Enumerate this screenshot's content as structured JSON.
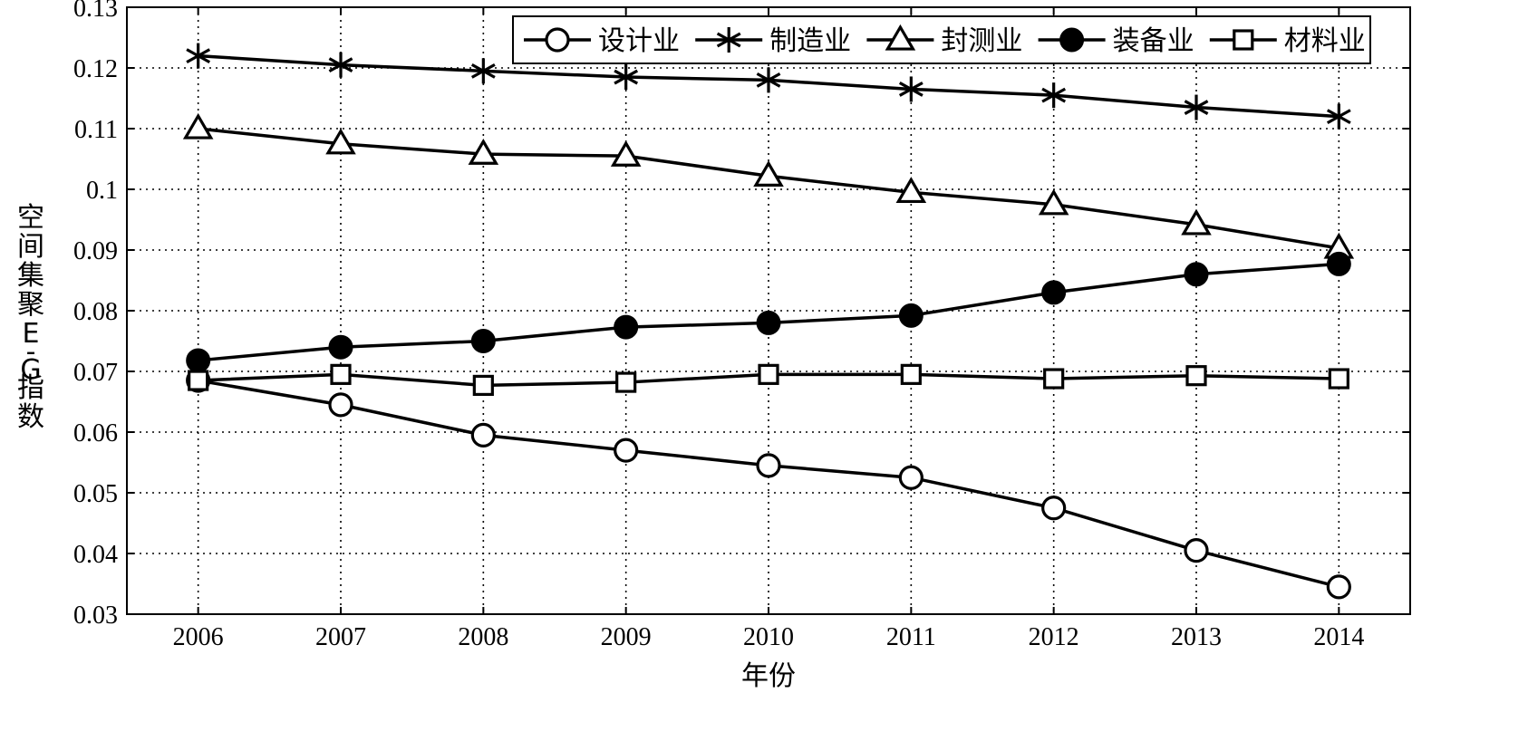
{
  "chart_data": {
    "type": "line",
    "title": "",
    "xlabel": "年份",
    "ylabel": "空间集聚E-G指数",
    "x": [
      2006,
      2007,
      2008,
      2009,
      2010,
      2011,
      2012,
      2013,
      2014
    ],
    "x_tick_labels": [
      "2006",
      "2007",
      "2008",
      "2009",
      "2010",
      "2011",
      "2012",
      "2013",
      "2014"
    ],
    "xlim": [
      2005.5,
      2014.5
    ],
    "ylim": [
      0.03,
      0.13
    ],
    "y_ticks": [
      0.03,
      0.04,
      0.05,
      0.06,
      0.07,
      0.08,
      0.09,
      0.1,
      0.11,
      0.12,
      0.13
    ],
    "y_tick_labels": [
      "0.03",
      "0.04",
      "0.05",
      "0.06",
      "0.07",
      "0.08",
      "0.09",
      "0.1",
      "0.11",
      "0.12",
      "0.13"
    ],
    "grid": true,
    "legend_position": "top-right",
    "series": [
      {
        "name": "设计业",
        "marker": "circle-open",
        "values": [
          0.0685,
          0.0645,
          0.0595,
          0.057,
          0.0545,
          0.0525,
          0.0475,
          0.0405,
          0.0345
        ]
      },
      {
        "name": "制造业",
        "marker": "asterisk",
        "values": [
          0.122,
          0.1205,
          0.1195,
          0.1185,
          0.118,
          0.1165,
          0.1155,
          0.1135,
          0.112
        ]
      },
      {
        "name": "封测业",
        "marker": "triangle-open",
        "values": [
          0.11,
          0.1075,
          0.1058,
          0.1055,
          0.1022,
          0.0995,
          0.0975,
          0.0942,
          0.0903
        ]
      },
      {
        "name": "装备业",
        "marker": "circle-filled",
        "values": [
          0.0718,
          0.074,
          0.075,
          0.0773,
          0.078,
          0.0792,
          0.083,
          0.086,
          0.0877
        ]
      },
      {
        "name": "材料业",
        "marker": "square-open",
        "values": [
          0.0685,
          0.0695,
          0.0677,
          0.0682,
          0.0695,
          0.0695,
          0.0688,
          0.0693,
          0.0688
        ]
      }
    ]
  }
}
